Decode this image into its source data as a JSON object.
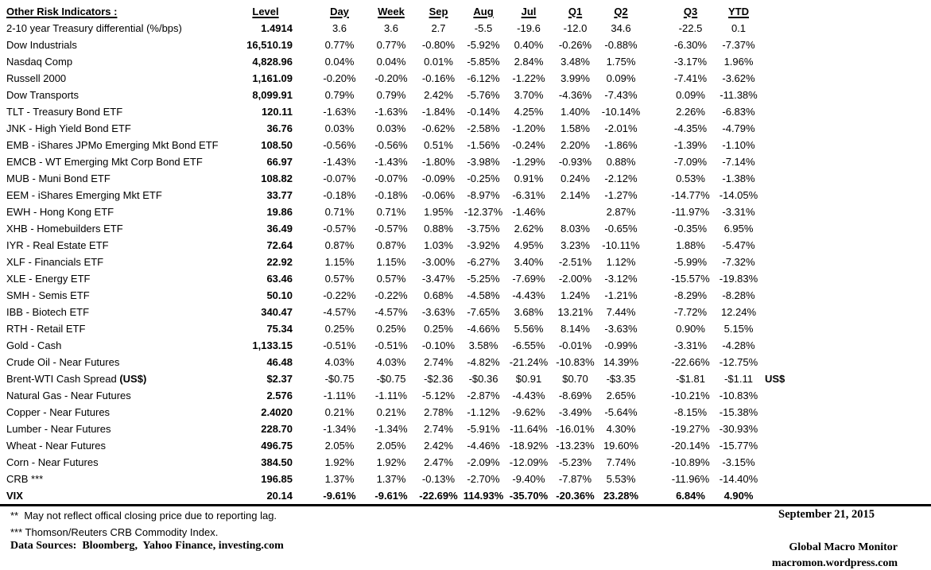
{
  "colors": {
    "text": "#000000",
    "background": "#ffffff",
    "rule": "#000000"
  },
  "table": {
    "title": "Other Risk Indicators :",
    "columns": [
      "Level",
      "Day",
      "Week",
      "Sep",
      "Aug",
      "Jul",
      "Q1",
      "Q2",
      "Q3",
      "YTD"
    ],
    "rows": [
      {
        "label": "2-10 year Treasury differential (%/bps)",
        "level": "1.4914",
        "values": [
          "3.6",
          "3.6",
          "2.7",
          "-5.5",
          "-19.6",
          "-12.0",
          "34.6",
          "-22.5",
          "0.1"
        ]
      },
      {
        "label": "Dow Industrials",
        "level": "16,510.19",
        "values": [
          "0.77%",
          "0.77%",
          "-0.80%",
          "-5.92%",
          "0.40%",
          "-0.26%",
          "-0.88%",
          "-6.30%",
          "-7.37%"
        ]
      },
      {
        "label": "Nasdaq Comp",
        "level": "4,828.96",
        "values": [
          "0.04%",
          "0.04%",
          "0.01%",
          "-5.85%",
          "2.84%",
          "3.48%",
          "1.75%",
          "-3.17%",
          "1.96%"
        ]
      },
      {
        "label": "Russell 2000",
        "level": "1,161.09",
        "values": [
          "-0.20%",
          "-0.20%",
          "-0.16%",
          "-6.12%",
          "-1.22%",
          "3.99%",
          "0.09%",
          "-7.41%",
          "-3.62%"
        ]
      },
      {
        "label": "Dow Transports",
        "level": "8,099.91",
        "values": [
          "0.79%",
          "0.79%",
          "2.42%",
          "-5.76%",
          "3.70%",
          "-4.36%",
          "-7.43%",
          "0.09%",
          "-11.38%"
        ]
      },
      {
        "label": "TLT - Treasury Bond ETF",
        "level": "120.11",
        "values": [
          "-1.63%",
          "-1.63%",
          "-1.84%",
          "-0.14%",
          "4.25%",
          "1.40%",
          "-10.14%",
          "2.26%",
          "-6.83%"
        ]
      },
      {
        "label": "JNK - High Yield Bond ETF",
        "level": "36.76",
        "values": [
          "0.03%",
          "0.03%",
          "-0.62%",
          "-2.58%",
          "-1.20%",
          "1.58%",
          "-2.01%",
          "-4.35%",
          "-4.79%"
        ]
      },
      {
        "label": "EMB - iShares JPMo Emerging Mkt Bond ETF",
        "level": "108.50",
        "values": [
          "-0.56%",
          "-0.56%",
          "0.51%",
          "-1.56%",
          "-0.24%",
          "2.20%",
          "-1.86%",
          "-1.39%",
          "-1.10%"
        ]
      },
      {
        "label": "EMCB - WT Emerging Mkt Corp Bond ETF",
        "level": "66.97",
        "values": [
          "-1.43%",
          "-1.43%",
          "-1.80%",
          "-3.98%",
          "-1.29%",
          "-0.93%",
          "0.88%",
          "-7.09%",
          "-7.14%"
        ]
      },
      {
        "label": "MUB - Muni Bond ETF",
        "level": "108.82",
        "values": [
          "-0.07%",
          "-0.07%",
          "-0.09%",
          "-0.25%",
          "0.91%",
          "0.24%",
          "-2.12%",
          "0.53%",
          "-1.38%"
        ]
      },
      {
        "label": "EEM - iShares Emerging Mkt ETF",
        "level": "33.77",
        "values": [
          "-0.18%",
          "-0.18%",
          "-0.06%",
          "-8.97%",
          "-6.31%",
          "2.14%",
          "-1.27%",
          "-14.77%",
          "-14.05%"
        ]
      },
      {
        "label": "EWH - Hong Kong ETF",
        "level": "19.86",
        "values": [
          "0.71%",
          "0.71%",
          "1.95%",
          "-12.37%",
          "-1.46%",
          "",
          "2.87%",
          "-11.97%",
          "-3.31%"
        ]
      },
      {
        "label": "XHB - Homebuilders ETF",
        "level": "36.49",
        "values": [
          "-0.57%",
          "-0.57%",
          "0.88%",
          "-3.75%",
          "2.62%",
          "8.03%",
          "-0.65%",
          "-0.35%",
          "6.95%"
        ]
      },
      {
        "label": "IYR - Real Estate ETF",
        "level": "72.64",
        "values": [
          "0.87%",
          "0.87%",
          "1.03%",
          "-3.92%",
          "4.95%",
          "3.23%",
          "-10.11%",
          "1.88%",
          "-5.47%"
        ]
      },
      {
        "label": "XLF - Financials ETF",
        "level": "22.92",
        "values": [
          "1.15%",
          "1.15%",
          "-3.00%",
          "-6.27%",
          "3.40%",
          "-2.51%",
          "1.12%",
          "-5.99%",
          "-7.32%"
        ]
      },
      {
        "label": "XLE - Energy ETF",
        "level": "63.46",
        "values": [
          "0.57%",
          "0.57%",
          "-3.47%",
          "-5.25%",
          "-7.69%",
          "-2.00%",
          "-3.12%",
          "-15.57%",
          "-19.83%"
        ]
      },
      {
        "label": "SMH - Semis ETF",
        "level": "50.10",
        "values": [
          "-0.22%",
          "-0.22%",
          "0.68%",
          "-4.58%",
          "-4.43%",
          "1.24%",
          "-1.21%",
          "-8.29%",
          "-8.28%"
        ]
      },
      {
        "label": "IBB - Biotech ETF",
        "level": "340.47",
        "values": [
          "-4.57%",
          "-4.57%",
          "-3.63%",
          "-7.65%",
          "3.68%",
          "13.21%",
          "7.44%",
          "-7.72%",
          "12.24%"
        ]
      },
      {
        "label": "RTH - Retail ETF",
        "level": "75.34",
        "values": [
          "0.25%",
          "0.25%",
          "0.25%",
          "-4.66%",
          "5.56%",
          "8.14%",
          "-3.63%",
          "0.90%",
          "5.15%"
        ]
      },
      {
        "label": "Gold - Cash",
        "level": "1,133.15",
        "values": [
          "-0.51%",
          "-0.51%",
          "-0.10%",
          "3.58%",
          "-6.55%",
          "-0.01%",
          "-0.99%",
          "-3.31%",
          "-4.28%"
        ]
      },
      {
        "label": "Crude Oil - Near Futures",
        "level": "46.48",
        "values": [
          "4.03%",
          "4.03%",
          "2.74%",
          "-4.82%",
          "-21.24%",
          "-10.83%",
          "14.39%",
          "-22.66%",
          "-12.75%"
        ]
      },
      {
        "label": "Brent-WTI Cash Spread ",
        "label_bold": "(US$)",
        "level": "$2.37",
        "values": [
          "-$0.75",
          "-$0.75",
          "-$2.36",
          "-$0.36",
          "$0.91",
          "$0.70",
          "-$3.35",
          "-$1.81",
          "-$1.11"
        ],
        "note": "US$"
      },
      {
        "label": "Natural Gas - Near Futures",
        "level": "2.576",
        "values": [
          "-1.11%",
          "-1.11%",
          "-5.12%",
          "-2.87%",
          "-4.43%",
          "-8.69%",
          "2.65%",
          "-10.21%",
          "-10.83%"
        ]
      },
      {
        "label": "Copper - Near Futures",
        "level": "2.4020",
        "values": [
          "0.21%",
          "0.21%",
          "2.78%",
          "-1.12%",
          "-9.62%",
          "-3.49%",
          "-5.64%",
          "-8.15%",
          "-15.38%"
        ]
      },
      {
        "label": "Lumber - Near Futures",
        "level": "228.70",
        "values": [
          "-1.34%",
          "-1.34%",
          "2.74%",
          "-5.91%",
          "-11.64%",
          "-16.01%",
          "4.30%",
          "-19.27%",
          "-30.93%"
        ]
      },
      {
        "label": "Wheat - Near Futures",
        "level": "496.75",
        "values": [
          "2.05%",
          "2.05%",
          "2.42%",
          "-4.46%",
          "-18.92%",
          "-13.23%",
          "19.60%",
          "-20.14%",
          "-15.77%"
        ]
      },
      {
        "label": "Corn - Near Futures",
        "level": "384.50",
        "values": [
          "1.92%",
          "1.92%",
          "2.47%",
          "-2.09%",
          "-12.09%",
          "-5.23%",
          "7.74%",
          "-10.89%",
          "-3.15%"
        ]
      },
      {
        "label": "CRB ***",
        "level": "196.85",
        "values": [
          "1.37%",
          "1.37%",
          "-0.13%",
          "-2.70%",
          "-9.40%",
          "-7.87%",
          "5.53%",
          "-11.96%",
          "-14.40%"
        ]
      },
      {
        "label": "VIX",
        "level": "20.14",
        "bold": true,
        "values": [
          "-9.61%",
          "-9.61%",
          "-22.69%",
          "114.93%",
          "-35.70%",
          "-20.36%",
          "23.28%",
          "6.84%",
          "4.90%"
        ]
      }
    ]
  },
  "footer": {
    "footnote_reporting": "**  May not reflect offical closing price due to reporting lag.",
    "footnote_crb": "*** Thomson/Reuters CRB Commodity Index.",
    "data_sources": "Data Sources:  Bloomberg,  Yahoo Finance, investing.com",
    "date": "September 21, 2015",
    "org": "Global Macro Monitor",
    "url": "macromon.wordpress.com"
  }
}
